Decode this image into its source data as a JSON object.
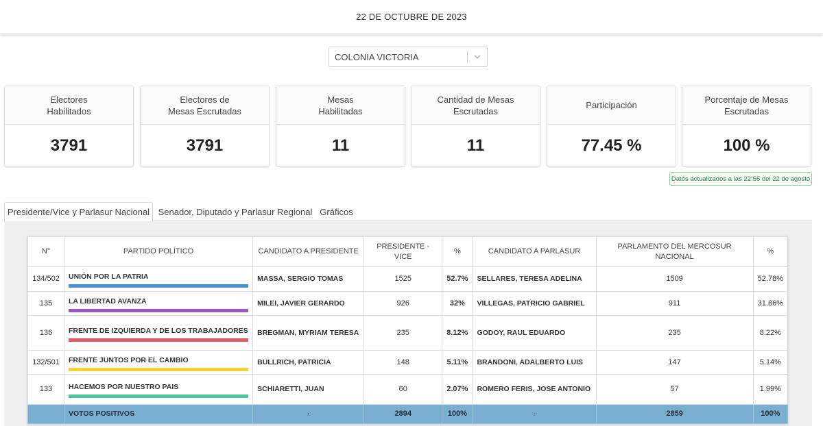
{
  "header": {
    "date": "22 DE OCTUBRE DE 2023"
  },
  "location_select": {
    "value": "COLONIA VICTORIA",
    "icon": "chevron-down-icon"
  },
  "stats": [
    {
      "label": "Electores\nHabilitados",
      "value": "3791"
    },
    {
      "label": "Electores de\nMesas Escrutadas",
      "value": "3791"
    },
    {
      "label": "Mesas\nHabilitadas",
      "value": "11"
    },
    {
      "label": "Cantidad de Mesas Escrutadas",
      "value": "11"
    },
    {
      "label": "Participación",
      "value": "77.45 %"
    },
    {
      "label": "Porcentaje de Mesas Escrutadas",
      "value": "100 %"
    }
  ],
  "updated_badge": "Datos actualizados a las 22:55 del 22 de agosto",
  "tabs": [
    {
      "label": "Presidente/Vice y Parlasur Nacional",
      "active": true
    },
    {
      "label": "Senador, Diputado y Parlasur Regional",
      "active": false
    },
    {
      "label": "Gráficos",
      "active": false
    }
  ],
  "table": {
    "headers": [
      "N°",
      "PARTIDO POLÍTICO",
      "CANDIDATO A PRESIDENTE",
      "PRESIDENTE - VICE",
      "%",
      "CANDIDATO A PARLASUR",
      "PARLAMENTO DEL MERCOSUR NACIONAL",
      "%"
    ],
    "rows": [
      {
        "n": "134/502",
        "party": "UNIÓN POR LA PATRIA",
        "color": "#4a90d9",
        "president": "MASSA, SERGIO TOMAS",
        "votes": "1525",
        "pct": "52.7%",
        "parlasur": "SELLARES, TERESA ADELINA",
        "parl_votes": "1509",
        "parl_pct": "52.78%"
      },
      {
        "n": "135",
        "party": "LA LIBERTAD AVANZA",
        "color": "#9b59c6",
        "president": "MILEI, JAVIER GERARDO",
        "votes": "926",
        "pct": "32%",
        "parlasur": "VILLEGAS, PATRICIO GABRIEL",
        "parl_votes": "911",
        "parl_pct": "31.86%"
      },
      {
        "n": "136",
        "party": "FRENTE DE IZQUIERDA Y DE LOS TRABAJADORES",
        "color": "#e05a66",
        "president": "BREGMAN, MYRIAM TERESA",
        "votes": "235",
        "pct": "8.12%",
        "parlasur": "GODOY, RAUL EDUARDO",
        "parl_votes": "235",
        "parl_pct": "8.22%"
      },
      {
        "n": "132/501",
        "party": "FRENTE JUNTOS POR EL CAMBIO",
        "color": "#f2d438",
        "president": "BULLRICH, PATRICIA",
        "votes": "148",
        "pct": "5.11%",
        "parlasur": "BRANDONI, ADALBERTO LUIS",
        "parl_votes": "147",
        "parl_pct": "5.14%"
      },
      {
        "n": "133",
        "party": "HACEMOS POR NUESTRO PAIS",
        "color": "#52c49a",
        "president": "SCHIARETTI, JUAN",
        "votes": "60",
        "pct": "2.07%",
        "parlasur": "ROMERO FERIS, JOSE ANTONIO",
        "parl_votes": "57",
        "parl_pct": "1.99%"
      }
    ],
    "total": {
      "n": "",
      "party": "VOTOS POSITIVOS",
      "president": "-",
      "votes": "2894",
      "pct": "100%",
      "parlasur": "-",
      "parl_votes": "2859",
      "parl_pct": "100%"
    }
  }
}
